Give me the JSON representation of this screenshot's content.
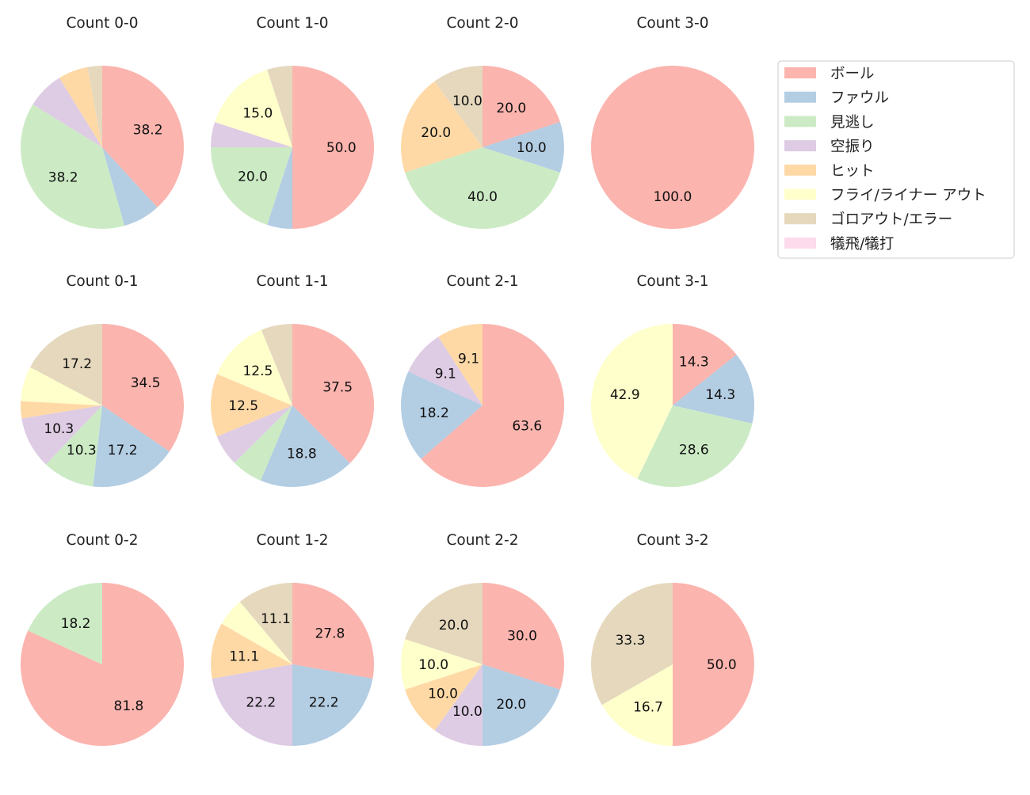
{
  "chart_data": {
    "type": "pie",
    "legend": {
      "placement": "top-right",
      "entries": [
        "ボール",
        "ファウル",
        "見逃し",
        "空振り",
        "ヒット",
        "フライ/ライナー アウト",
        "ゴロアウト/エラー",
        "犠飛/犠打"
      ],
      "colors": [
        "#fbb4ae",
        "#b3cde3",
        "#ccebc5",
        "#decbe4",
        "#fed9a6",
        "#ffffcc",
        "#e5d8bd",
        "#fddaec"
      ]
    },
    "direction": "clockwise from top",
    "charts": [
      {
        "title": "Count 0-0",
        "values": [
          38.2,
          7.4,
          38.2,
          7.4,
          5.9,
          0,
          2.9,
          0
        ]
      },
      {
        "title": "Count 1-0",
        "values": [
          50.0,
          5.0,
          20.0,
          5.0,
          0,
          15.0,
          5.0,
          0
        ]
      },
      {
        "title": "Count 2-0",
        "values": [
          20.0,
          10.0,
          40.0,
          0,
          20.0,
          0,
          10.0,
          0
        ]
      },
      {
        "title": "Count 3-0",
        "values": [
          100.0,
          0,
          0,
          0,
          0,
          0,
          0,
          0
        ]
      },
      {
        "title": "Count 0-1",
        "values": [
          34.5,
          17.2,
          10.3,
          10.3,
          3.4,
          6.9,
          17.2,
          0
        ]
      },
      {
        "title": "Count 1-1",
        "values": [
          37.5,
          18.8,
          6.2,
          6.2,
          12.5,
          12.5,
          6.2,
          0
        ]
      },
      {
        "title": "Count 2-1",
        "values": [
          63.6,
          18.2,
          0,
          9.1,
          9.1,
          0,
          0,
          0
        ]
      },
      {
        "title": "Count 3-1",
        "values": [
          14.3,
          14.3,
          28.6,
          0,
          0,
          42.9,
          0,
          0
        ]
      },
      {
        "title": "Count 0-2",
        "values": [
          81.8,
          0,
          18.2,
          0,
          0,
          0,
          0,
          0
        ]
      },
      {
        "title": "Count 1-2",
        "values": [
          27.8,
          22.2,
          0,
          22.2,
          11.1,
          5.6,
          11.1,
          0
        ]
      },
      {
        "title": "Count 2-2",
        "values": [
          30.0,
          20.0,
          0,
          10.0,
          10.0,
          10.0,
          20.0,
          0
        ]
      },
      {
        "title": "Count 3-2",
        "values": [
          50.0,
          0,
          0,
          0,
          0,
          16.7,
          33.3,
          0
        ]
      }
    ]
  }
}
